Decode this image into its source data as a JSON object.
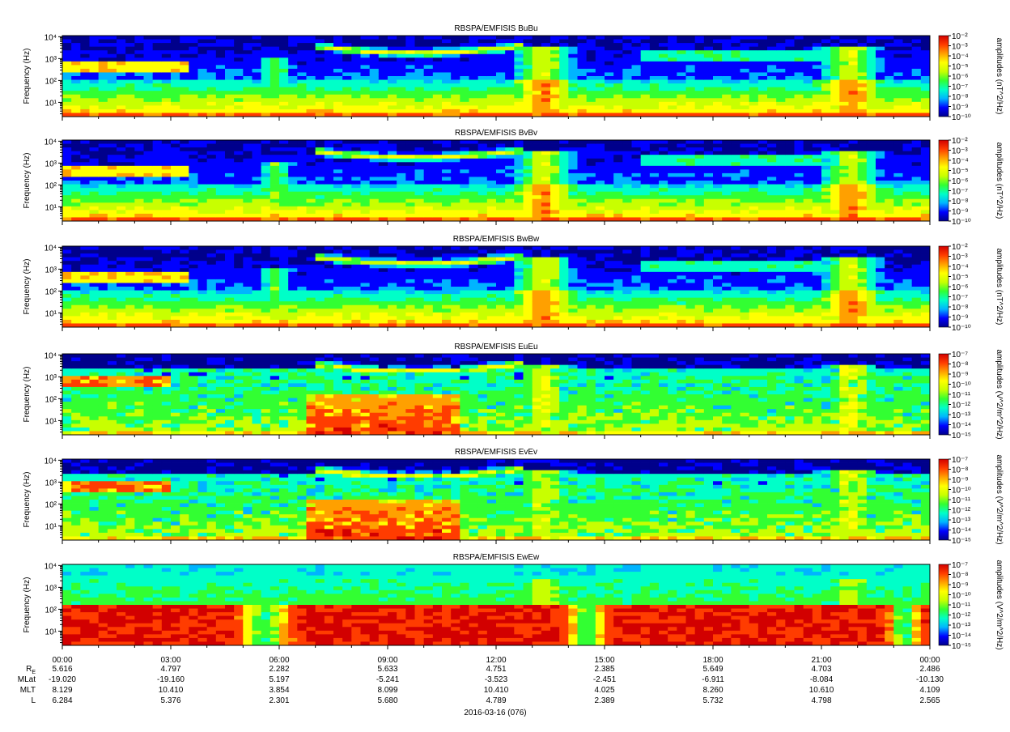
{
  "chart_data": {
    "type": "heatmap",
    "panels": [
      {
        "title": "RBSPA/EMFISIS  BuBu",
        "ylabel": "Frequency (Hz)",
        "clabel": "amplitudes (nT^2/Hz)",
        "cticks": [
          "10⁻²",
          "10⁻³",
          "10⁻⁴",
          "10⁻⁵",
          "10⁻⁶",
          "10⁻⁷",
          "10⁻⁸",
          "10⁻⁹",
          "10⁻¹⁰"
        ],
        "crange": [
          -10,
          -2
        ],
        "kind": "B"
      },
      {
        "title": "RBSPA/EMFISIS  BvBv",
        "ylabel": "Frequency (Hz)",
        "clabel": "amplitudes (nT^2/Hz)",
        "cticks": [
          "10⁻²",
          "10⁻³",
          "10⁻⁴",
          "10⁻⁵",
          "10⁻⁶",
          "10⁻⁷",
          "10⁻⁸",
          "10⁻⁹",
          "10⁻¹⁰"
        ],
        "crange": [
          -10,
          -2
        ],
        "kind": "B"
      },
      {
        "title": "RBSPA/EMFISIS  BwBw",
        "ylabel": "Frequency (Hz)",
        "clabel": "amplitudes (nT^2/Hz)",
        "cticks": [
          "10⁻²",
          "10⁻³",
          "10⁻⁴",
          "10⁻⁵",
          "10⁻⁶",
          "10⁻⁷",
          "10⁻⁸",
          "10⁻⁹",
          "10⁻¹⁰"
        ],
        "crange": [
          -10,
          -2
        ],
        "kind": "B"
      },
      {
        "title": "RBSPA/EMFISIS  EuEu",
        "ylabel": "Frequency (Hz)",
        "clabel": "amplitudes (V^2/m^2/Hz)",
        "cticks": [
          "10⁻⁷",
          "10⁻⁸",
          "10⁻⁹",
          "10⁻¹⁰",
          "10⁻¹¹",
          "10⁻¹²",
          "10⁻¹³",
          "10⁻¹⁴",
          "10⁻¹⁵"
        ],
        "crange": [
          -15,
          -7
        ],
        "kind": "E"
      },
      {
        "title": "RBSPA/EMFISIS  EvEv",
        "ylabel": "Frequency (Hz)",
        "clabel": "amplitudes (V^2/m^2/Hz)",
        "cticks": [
          "10⁻⁷",
          "10⁻⁸",
          "10⁻⁹",
          "10⁻¹⁰",
          "10⁻¹¹",
          "10⁻¹²",
          "10⁻¹³",
          "10⁻¹⁴",
          "10⁻¹⁵"
        ],
        "crange": [
          -15,
          -7
        ],
        "kind": "E"
      },
      {
        "title": "RBSPA/EMFISIS  EwEw",
        "ylabel": "Frequency (Hz)",
        "clabel": "amplitudes (V^2/m^2/Hz)",
        "cticks": [
          "10⁻⁷",
          "10⁻⁸",
          "10⁻⁹",
          "10⁻¹⁰",
          "10⁻¹¹",
          "10⁻¹²",
          "10⁻¹³",
          "10⁻¹⁴",
          "10⁻¹⁵"
        ],
        "crange": [
          -15,
          -7
        ],
        "kind": "W"
      }
    ],
    "y_ticks": [
      "10⁴",
      "10³",
      "10²",
      "10¹"
    ],
    "y_range_log10": [
      0.35,
      4.05
    ],
    "x_ticks": [
      "00:00",
      "03:00",
      "06:00",
      "09:00",
      "12:00",
      "15:00",
      "18:00",
      "21:00",
      "00:00"
    ],
    "x_range_hours": [
      0,
      24
    ],
    "ephemeris": {
      "labels": [
        "R_E",
        "MLat",
        "MLT",
        "L"
      ],
      "rows": [
        [
          "5.616",
          "4.797",
          "2.282",
          "5.633",
          "4.751",
          "2.385",
          "5.649",
          "4.703",
          "2.486"
        ],
        [
          "-19.020",
          "-19.160",
          "5.197",
          "-5.241",
          "-3.523",
          "-2.451",
          "-6.911",
          "-8.084",
          "-10.130"
        ],
        [
          "8.129",
          "10.410",
          "3.854",
          "8.099",
          "10.410",
          "4.025",
          "8.260",
          "10.610",
          "4.109"
        ],
        [
          "6.284",
          "5.376",
          "2.301",
          "5.680",
          "4.789",
          "2.389",
          "5.732",
          "4.798",
          "2.565"
        ]
      ]
    },
    "date_label": "2016-03-16 (076)",
    "colormap": [
      "#00008b",
      "#0000ff",
      "#00b4ff",
      "#00ffc8",
      "#32ff32",
      "#c8ff00",
      "#ffff00",
      "#ffa000",
      "#ff3c00",
      "#d20000"
    ]
  }
}
